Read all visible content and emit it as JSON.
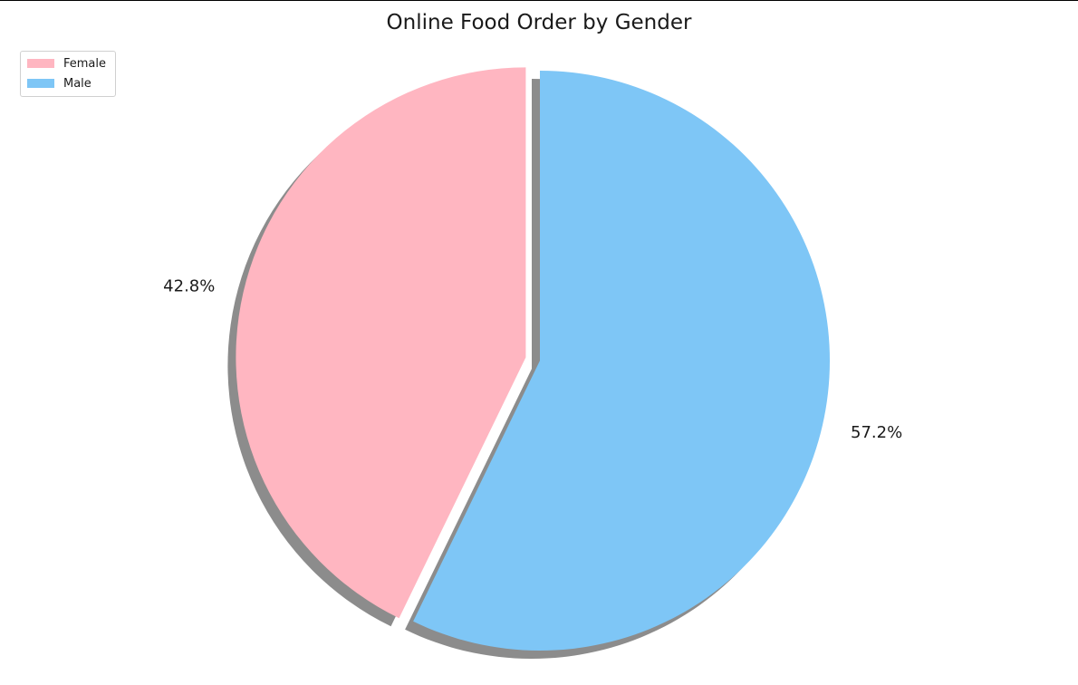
{
  "chart_data": {
    "type": "pie",
    "title": "Online Food Order by Gender",
    "labels": [
      "Female",
      "Male"
    ],
    "values": [
      42.8,
      57.2
    ],
    "value_labels": [
      "42.8%",
      "57.2%"
    ],
    "colors": [
      "#ffb6c1",
      "#7ec6f6"
    ],
    "explode": [
      0.05,
      0
    ],
    "start_angle_deg": 90,
    "shadow": true,
    "legend_position": "top-left"
  },
  "legend": {
    "items": [
      {
        "label": "Female",
        "color": "#ffb6c1"
      },
      {
        "label": "Male",
        "color": "#7ec6f6"
      }
    ]
  }
}
